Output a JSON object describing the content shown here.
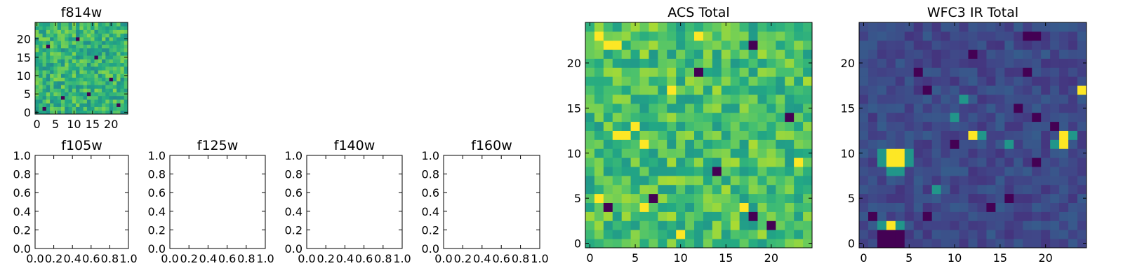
{
  "chart_data": [
    {
      "id": "f814w",
      "type": "heatmap",
      "title": "f814w",
      "colormap": "viridis",
      "grid_size": [
        25,
        25
      ],
      "xlim": [
        -0.5,
        24.5
      ],
      "ylim": [
        -0.5,
        24.5
      ],
      "xticks": [
        "0",
        "5",
        "10",
        "15",
        "20"
      ],
      "yticks": [
        "0",
        "5",
        "10",
        "15",
        "20"
      ],
      "value_range": [
        0,
        1
      ],
      "dominant_level": 0.65,
      "seed": 11,
      "dark_cells": [
        [
          2,
          1
        ],
        [
          7,
          4
        ],
        [
          14,
          5
        ],
        [
          20,
          9
        ],
        [
          3,
          18
        ],
        [
          16,
          15
        ],
        [
          11,
          20
        ],
        [
          22,
          2
        ]
      ]
    },
    {
      "id": "f105w",
      "type": "heatmap",
      "title": "f105w",
      "empty": true,
      "xlim": [
        0,
        1
      ],
      "ylim": [
        0,
        1
      ],
      "xticks": [
        "0.0",
        "0.2",
        "0.4",
        "0.6",
        "0.8",
        "1.0"
      ],
      "yticks": [
        "0.0",
        "0.2",
        "0.4",
        "0.6",
        "0.8",
        "1.0"
      ]
    },
    {
      "id": "f125w",
      "type": "heatmap",
      "title": "f125w",
      "empty": true,
      "xlim": [
        0,
        1
      ],
      "ylim": [
        0,
        1
      ],
      "xticks": [
        "0.0",
        "0.2",
        "0.4",
        "0.6",
        "0.8",
        "1.0"
      ],
      "yticks": [
        "0.0",
        "0.2",
        "0.4",
        "0.6",
        "0.8",
        "1.0"
      ]
    },
    {
      "id": "f140w",
      "type": "heatmap",
      "title": "f140w",
      "empty": true,
      "xlim": [
        0,
        1
      ],
      "ylim": [
        0,
        1
      ],
      "xticks": [
        "0.0",
        "0.2",
        "0.4",
        "0.6",
        "0.8",
        "1.0"
      ],
      "yticks": [
        "0.0",
        "0.2",
        "0.4",
        "0.6",
        "0.8",
        "1.0"
      ]
    },
    {
      "id": "f160w",
      "type": "heatmap",
      "title": "f160w",
      "empty": true,
      "xlim": [
        0,
        1
      ],
      "ylim": [
        0,
        1
      ],
      "xticks": [
        "0.0",
        "0.2",
        "0.4",
        "0.6",
        "0.8",
        "1.0"
      ],
      "yticks": [
        "0.0",
        "0.2",
        "0.4",
        "0.6",
        "0.8",
        "1.0"
      ]
    },
    {
      "id": "acs-total",
      "type": "heatmap",
      "title": "ACS Total",
      "colormap": "viridis",
      "grid_size": [
        25,
        25
      ],
      "xlim": [
        -0.5,
        24.5
      ],
      "ylim": [
        -0.5,
        24.5
      ],
      "xticks": [
        "0",
        "5",
        "10",
        "15",
        "20"
      ],
      "yticks": [
        "0",
        "5",
        "10",
        "15",
        "20"
      ],
      "value_range": [
        0,
        1
      ],
      "dominant_level": 0.7,
      "seed": 23,
      "dark_cells": [
        [
          2,
          4
        ],
        [
          7,
          5
        ],
        [
          14,
          8
        ],
        [
          18,
          3
        ],
        [
          18,
          22
        ],
        [
          12,
          19
        ],
        [
          20,
          2
        ],
        [
          22,
          14
        ]
      ],
      "bright_cells": [
        [
          1,
          23
        ],
        [
          2,
          22
        ],
        [
          3,
          22
        ],
        [
          12,
          23
        ],
        [
          9,
          17
        ],
        [
          5,
          13
        ],
        [
          3,
          12
        ],
        [
          4,
          12
        ],
        [
          6,
          11
        ],
        [
          1,
          5
        ],
        [
          6,
          4
        ],
        [
          17,
          4
        ],
        [
          10,
          1
        ],
        [
          23,
          9
        ]
      ]
    },
    {
      "id": "wfc3-ir-total",
      "type": "heatmap",
      "title": "WFC3 IR Total",
      "colormap": "viridis",
      "grid_size": [
        25,
        25
      ],
      "xlim": [
        -0.5,
        24.5
      ],
      "ylim": [
        -0.5,
        24.5
      ],
      "xticks": [
        "0",
        "5",
        "10",
        "15",
        "20"
      ],
      "yticks": [
        "0",
        "5",
        "10",
        "15",
        "20"
      ],
      "value_range": [
        0,
        1
      ],
      "dominant_level": 0.22,
      "seed": 37,
      "bright_cells": [
        [
          3,
          9
        ],
        [
          4,
          9
        ],
        [
          3,
          10
        ],
        [
          4,
          10
        ],
        [
          3,
          2
        ],
        [
          12,
          12
        ],
        [
          22,
          11
        ],
        [
          22,
          12
        ],
        [
          24,
          17
        ]
      ],
      "mid_cells": [
        [
          2,
          10
        ],
        [
          5,
          10
        ],
        [
          2,
          9
        ],
        [
          5,
          9
        ],
        [
          3,
          8
        ],
        [
          4,
          8
        ],
        [
          2,
          2
        ],
        [
          4,
          2
        ],
        [
          13,
          12
        ],
        [
          23,
          12
        ],
        [
          21,
          11
        ],
        [
          10,
          14
        ],
        [
          16,
          11
        ],
        [
          8,
          6
        ],
        [
          11,
          16
        ]
      ],
      "dark_cells": [
        [
          2,
          0
        ],
        [
          3,
          0
        ],
        [
          4,
          0
        ],
        [
          2,
          1
        ],
        [
          3,
          1
        ],
        [
          4,
          1
        ],
        [
          1,
          3
        ],
        [
          18,
          23
        ],
        [
          19,
          23
        ],
        [
          14,
          4
        ],
        [
          16,
          5
        ],
        [
          19,
          9
        ],
        [
          19,
          14
        ],
        [
          21,
          13
        ],
        [
          7,
          3
        ],
        [
          10,
          11
        ],
        [
          17,
          15
        ],
        [
          6,
          19
        ],
        [
          12,
          21
        ],
        [
          18,
          19
        ],
        [
          7,
          17
        ]
      ]
    }
  ]
}
